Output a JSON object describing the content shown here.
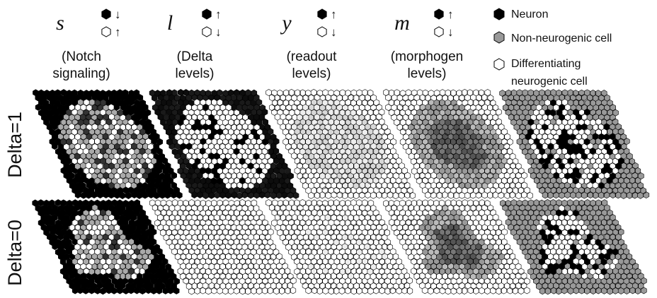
{
  "columns": [
    {
      "variable": "s",
      "arrows": [
        "↓",
        "↑"
      ],
      "lines": [
        "(Notch",
        "signaling)"
      ]
    },
    {
      "variable": "l",
      "arrows": [
        "↑",
        "↓"
      ],
      "lines": [
        "(Delta",
        "levels)"
      ]
    },
    {
      "variable": "y",
      "arrows": [
        "↑",
        "↓"
      ],
      "lines": [
        "(readout",
        "levels)"
      ]
    },
    {
      "variable": "m",
      "arrows": [
        "↑",
        "↓"
      ],
      "lines": [
        "(morphogen",
        "levels)"
      ]
    }
  ],
  "legend": [
    {
      "lines": [
        "Neuron"
      ]
    },
    {
      "lines": [
        "Non-neurogenic cell"
      ]
    },
    {
      "lines": [
        "Differentiating",
        "neurogenic cell"
      ]
    }
  ],
  "rows": [
    "Delta=1",
    "Delta=0"
  ]
}
